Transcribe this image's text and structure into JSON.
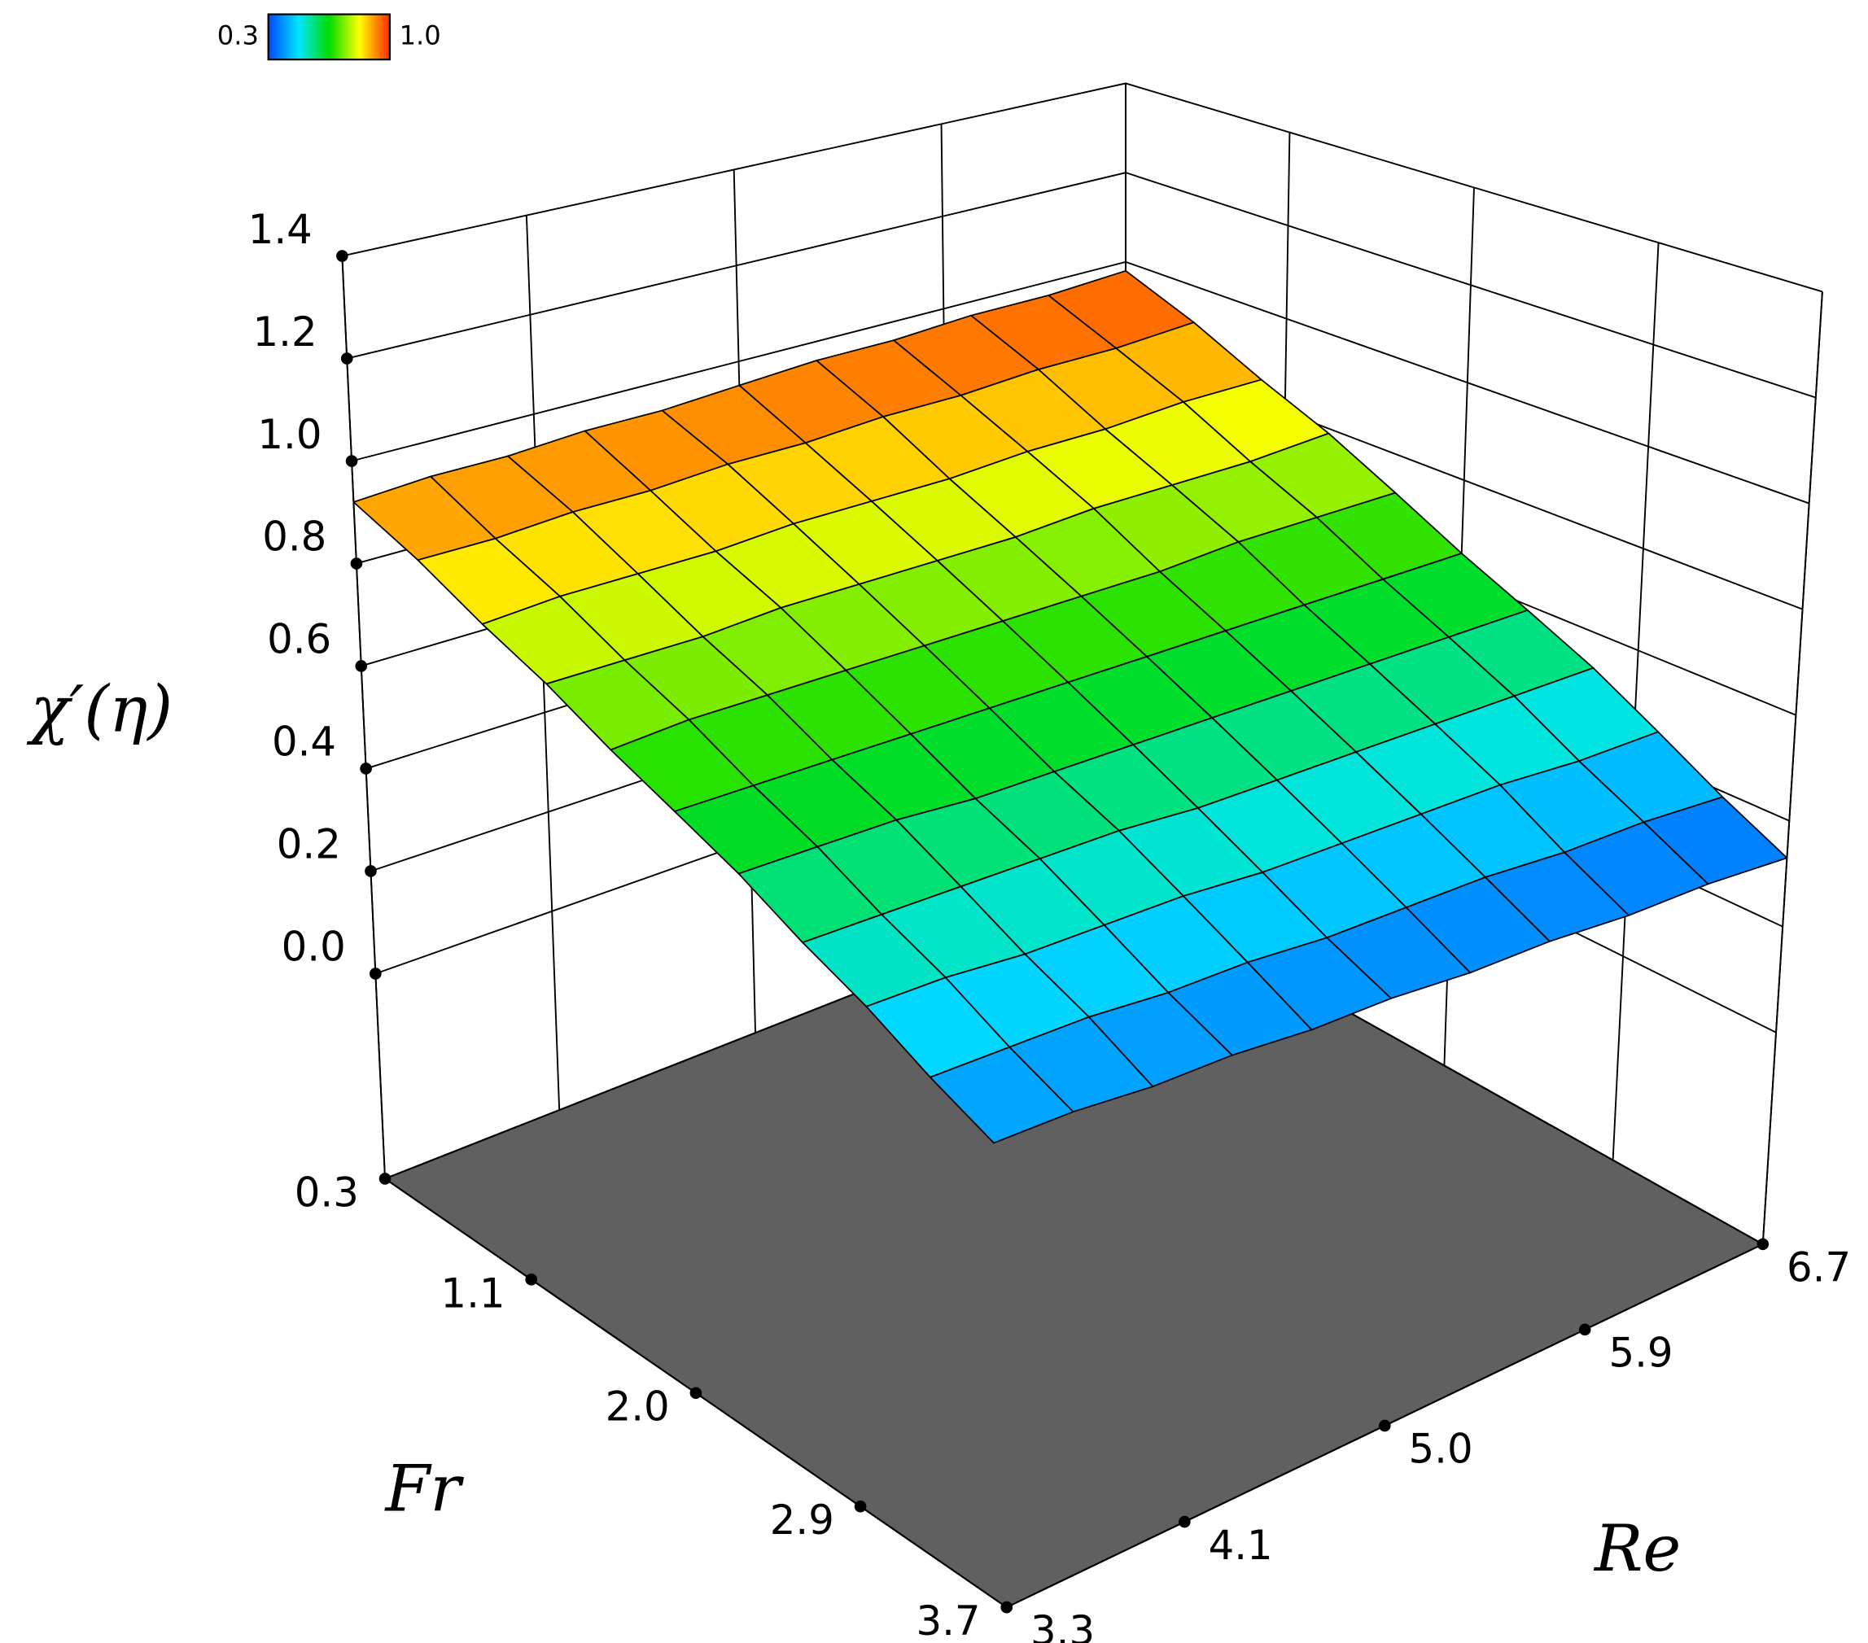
{
  "chart_data": {
    "type": "surface",
    "z_label": "χ′(η)",
    "x_label": "Fr",
    "y_label": "Re",
    "x": [
      0.3,
      0.64,
      0.98,
      1.32,
      1.66,
      2.0,
      2.34,
      2.68,
      3.02,
      3.36,
      3.7
    ],
    "y": [
      3.3,
      3.64,
      3.98,
      4.32,
      4.66,
      5.0,
      5.34,
      5.68,
      6.02,
      6.36,
      6.7
    ],
    "z": [
      [
        0.92,
        0.93,
        0.93,
        0.94,
        0.94,
        0.95,
        0.96,
        0.96,
        0.97,
        0.97,
        0.98
      ],
      [
        0.87,
        0.87,
        0.88,
        0.88,
        0.89,
        0.89,
        0.9,
        0.9,
        0.91,
        0.91,
        0.92
      ],
      [
        0.81,
        0.82,
        0.82,
        0.82,
        0.83,
        0.83,
        0.83,
        0.84,
        0.84,
        0.85,
        0.85
      ],
      [
        0.76,
        0.76,
        0.76,
        0.77,
        0.77,
        0.77,
        0.77,
        0.78,
        0.78,
        0.78,
        0.79
      ],
      [
        0.7,
        0.71,
        0.71,
        0.71,
        0.71,
        0.71,
        0.71,
        0.71,
        0.72,
        0.72,
        0.72
      ],
      [
        0.65,
        0.65,
        0.65,
        0.65,
        0.65,
        0.65,
        0.65,
        0.65,
        0.65,
        0.65,
        0.65
      ],
      [
        0.6,
        0.6,
        0.6,
        0.59,
        0.59,
        0.59,
        0.59,
        0.59,
        0.59,
        0.59,
        0.59
      ],
      [
        0.54,
        0.54,
        0.54,
        0.54,
        0.54,
        0.53,
        0.53,
        0.53,
        0.53,
        0.53,
        0.53
      ],
      [
        0.49,
        0.49,
        0.48,
        0.48,
        0.48,
        0.47,
        0.47,
        0.47,
        0.47,
        0.46,
        0.46
      ],
      [
        0.43,
        0.43,
        0.43,
        0.42,
        0.42,
        0.41,
        0.41,
        0.41,
        0.4,
        0.4,
        0.39
      ],
      [
        0.38,
        0.38,
        0.37,
        0.37,
        0.36,
        0.36,
        0.35,
        0.35,
        0.34,
        0.34,
        0.33
      ]
    ],
    "xlim": [
      0.3,
      3.7
    ],
    "ylim": [
      3.3,
      6.7
    ],
    "zlim": [
      -0.4,
      1.4
    ],
    "xticks": [
      0.3,
      1.1,
      {
        "value": 2,
        "label": "2.0"
      },
      2.9,
      3.7
    ],
    "yticks": [
      3.3,
      4.1,
      {
        "value": 5,
        "label": "5.0"
      },
      5.9,
      6.7
    ],
    "zticks": [
      {
        "value": 0,
        "label": "0.0"
      },
      0.2,
      0.4,
      0.6,
      0.8,
      {
        "value": 1,
        "label": "1.0"
      },
      1.2,
      1.4
    ],
    "colorbar": {
      "range": [
        0.3,
        {
          "value": 1,
          "label": "1.0"
        }
      ],
      "colors": [
        "#0046ff",
        "#00e6ff",
        "#00dc00",
        "#ffff00",
        "#ff2800"
      ]
    },
    "floor_color": "#606060",
    "grid": true
  }
}
